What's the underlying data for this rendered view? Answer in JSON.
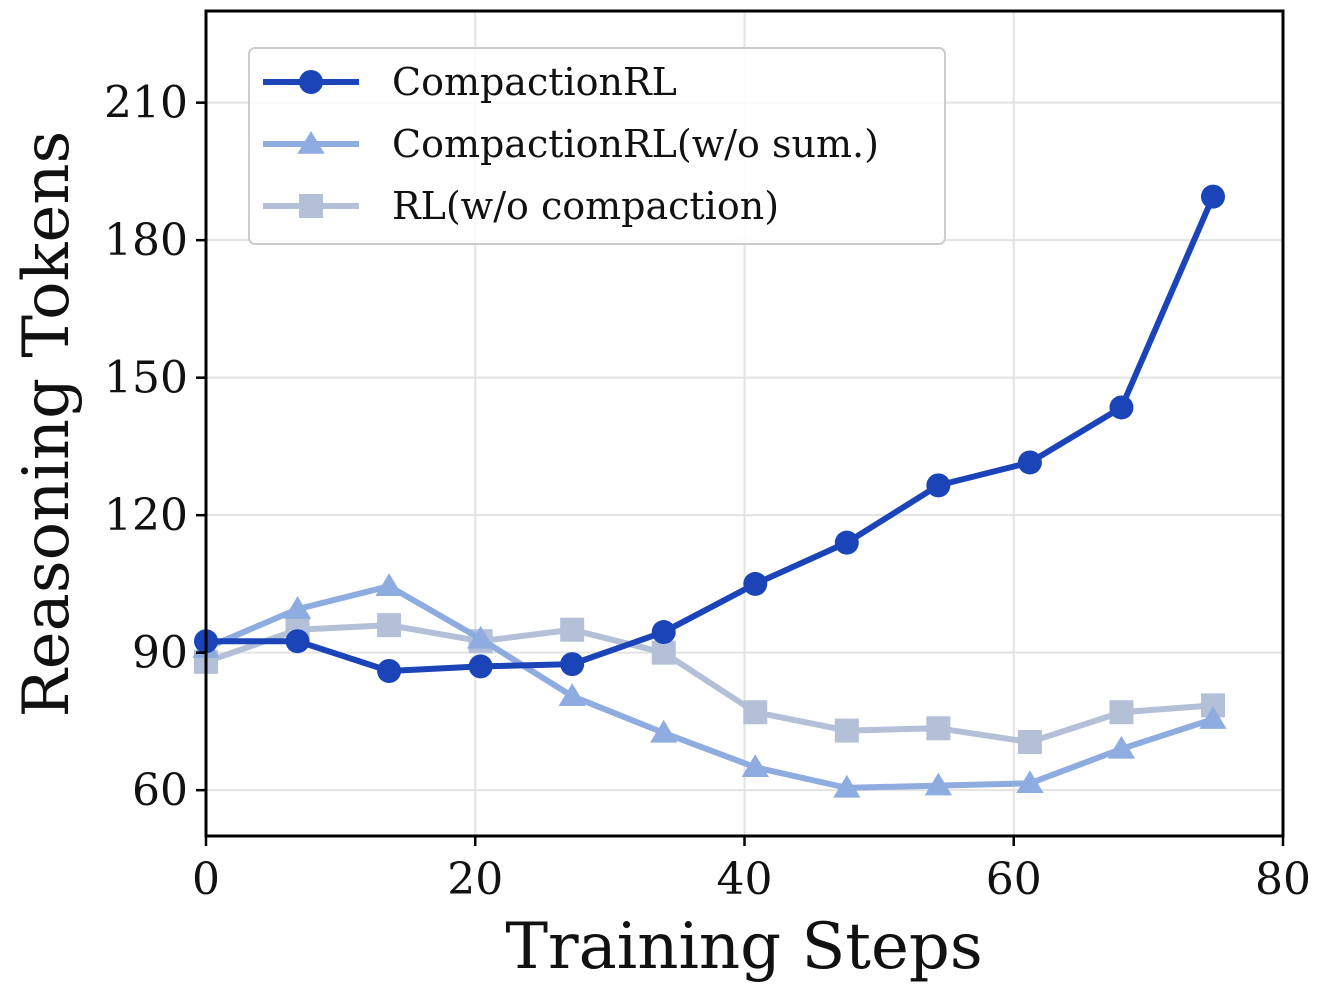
{
  "chart_data": {
    "type": "line",
    "title": "",
    "xlabel": "Training Steps",
    "ylabel": "Reasoning Tokens",
    "xlim": [
      0,
      80
    ],
    "ylim": [
      50,
      230
    ],
    "xticks": [
      0,
      20,
      40,
      60,
      80
    ],
    "yticks": [
      60,
      90,
      120,
      150,
      180,
      210
    ],
    "grid": true,
    "legend_position": "top-left",
    "x": [
      0,
      6.8,
      13.6,
      20.4,
      27.2,
      34.0,
      40.8,
      47.6,
      54.4,
      61.2,
      68.0,
      74.8
    ],
    "series": [
      {
        "name": "CompactionRL",
        "marker": "circle",
        "color": "#1a44b8",
        "values": [
          92.5,
          92.5,
          86,
          87,
          87.5,
          94.5,
          105,
          114,
          126.5,
          131.5,
          143.5,
          189.5
        ]
      },
      {
        "name": "CompactionRL(w/o sum.)",
        "marker": "triangle",
        "color": "#8eace0",
        "values": [
          91,
          99.5,
          104.5,
          93,
          80.5,
          72.5,
          65,
          60.5,
          61,
          61.5,
          69,
          75.5
        ]
      },
      {
        "name": "RL(w/o compaction)",
        "marker": "square",
        "color": "#b3c0d8",
        "values": [
          88,
          95,
          96,
          92.5,
          95,
          90,
          77,
          73,
          73.5,
          70.5,
          77,
          78.5
        ]
      }
    ]
  }
}
